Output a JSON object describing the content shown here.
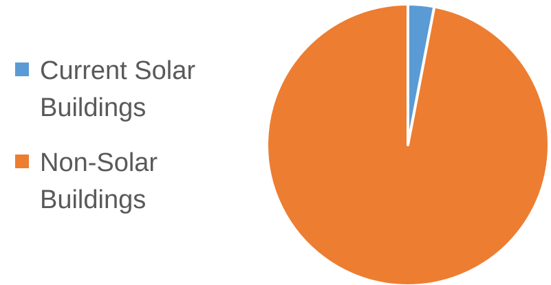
{
  "chart_data": {
    "type": "pie",
    "title": "",
    "labels": [
      "Current Solar Buildings",
      "Non-Solar Buildings"
    ],
    "values": [
      3,
      97
    ],
    "colors": [
      "#5B9BD5",
      "#ED7D31"
    ],
    "start_angle_deg": 0,
    "direction": "clockwise",
    "legend": {
      "placement": "left"
    }
  }
}
